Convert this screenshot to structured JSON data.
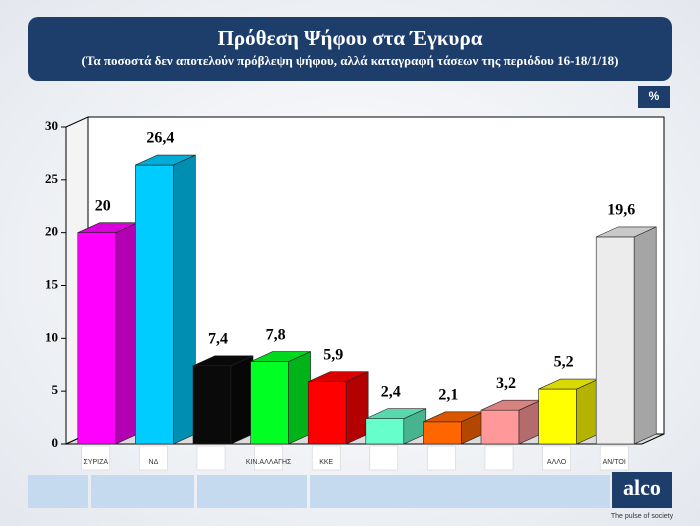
{
  "chart_data": {
    "type": "bar3d",
    "title": "Πρόθεση Ψήφου στα Έγκυρα",
    "subtitle": "(Τα ποσοστά δεν αποτελούν πρόβλεψη ψήφου, αλλά καταγραφή τάσεων  της περιόδου 16-18/1/18)",
    "unit_label": "%",
    "categories": [
      "ΣΥΡΙΖΑ",
      "ΝΔ",
      null,
      "ΚΙΝ.ΑΛΛΑΓΗΣ",
      "ΚΚΕ",
      null,
      null,
      null,
      "ΑΛΛΟ",
      "ΑΝ/ΤΟΙ"
    ],
    "values": [
      20,
      26.4,
      7.4,
      7.8,
      5.9,
      2.4,
      2.1,
      3.2,
      5.2,
      19.6
    ],
    "value_labels": [
      "20",
      "26,4",
      "7,4",
      "7,8",
      "5,9",
      "2,4",
      "2,1",
      "3,2",
      "5,2",
      "19,6"
    ],
    "colors": [
      "#ff00ff",
      "#00ccff",
      "#0a0a0a",
      "#00ff22",
      "#ff0000",
      "#66ffcc",
      "#ff6600",
      "#ff9999",
      "#ffff00",
      "#ececec"
    ],
    "ylim": [
      0,
      30
    ],
    "yticks": [
      0,
      5,
      10,
      15,
      20,
      25,
      30
    ],
    "brand": "alco",
    "tagline": "The pulse of society"
  }
}
